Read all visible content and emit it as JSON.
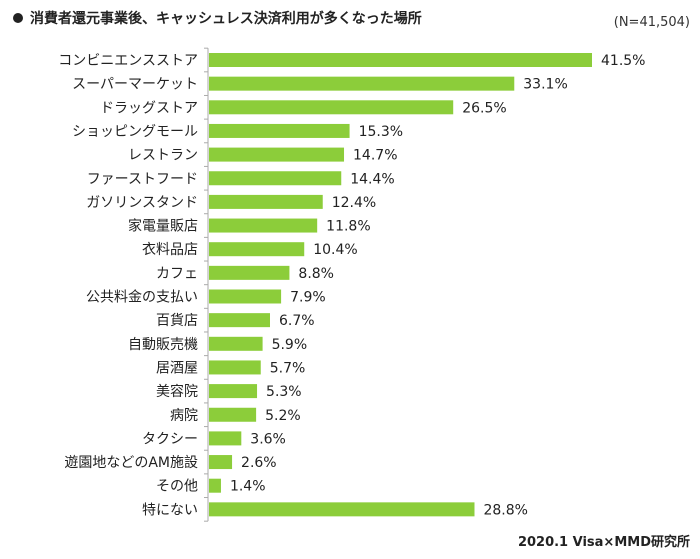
{
  "chart_data": {
    "type": "bar",
    "orientation": "horizontal",
    "title": "消費者還元事業後、キャッシュレス決済利用が多くなった場所",
    "sample_size": "(N=41,504)",
    "source": "2020.1 Visa×MMD研究所",
    "bar_color": "#8ccd3a",
    "axis_color": "#aaaaaa",
    "xlim": [
      0,
      50
    ],
    "categories": [
      "コンビニエンスストア",
      "スーパーマーケット",
      "ドラッグストア",
      "ショッピングモール",
      "レストラン",
      "ファーストフード",
      "ガソリンスタンド",
      "家電量販店",
      "衣料品店",
      "カフェ",
      "公共料金の支払い",
      "百貨店",
      "自動販売機",
      "居酒屋",
      "美容院",
      "病院",
      "タクシー",
      "遊園地などのAM施設",
      "その他",
      "特にない"
    ],
    "values": [
      41.5,
      33.1,
      26.5,
      15.3,
      14.7,
      14.4,
      12.4,
      11.8,
      10.4,
      8.8,
      7.9,
      6.7,
      5.9,
      5.7,
      5.3,
      5.2,
      3.6,
      2.6,
      1.4,
      28.8
    ],
    "value_labels": [
      "41.5%",
      "33.1%",
      "26.5%",
      "15.3%",
      "14.7%",
      "14.4%",
      "12.4%",
      "11.8%",
      "10.4%",
      "8.8%",
      "7.9%",
      "6.7%",
      "5.9%",
      "5.7%",
      "5.3%",
      "5.2%",
      "3.6%",
      "2.6%",
      "1.4%",
      "28.8%"
    ]
  }
}
